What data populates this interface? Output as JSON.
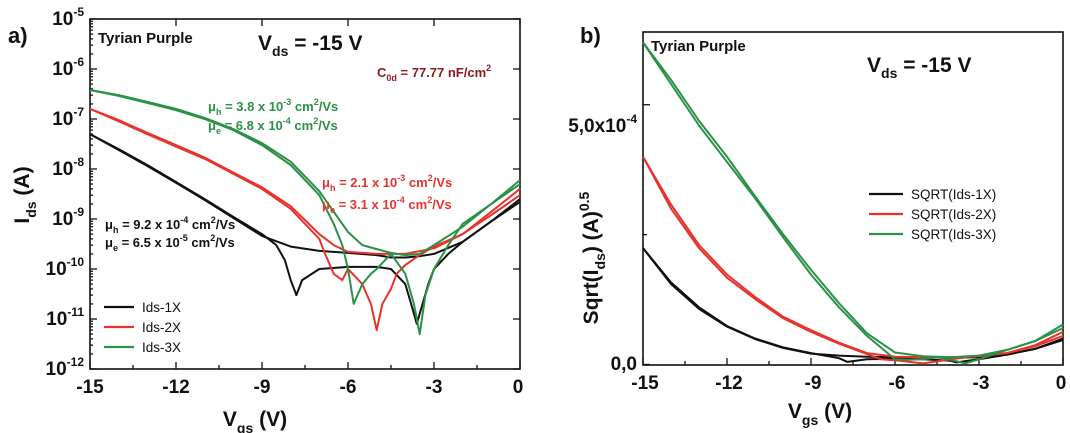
{
  "colors": {
    "black": "#111111",
    "red": "#e8332d",
    "green": "#2a9146",
    "maroon": "#8b1a1a"
  },
  "panel_a": {
    "letter": "a)",
    "title": "Tyrian Purple",
    "vds": {
      "main": "V",
      "sub": "ds",
      "value": " = -15 V"
    },
    "capacitance": {
      "main": "C",
      "sub": "0d",
      "value": " = 77.77 nF/cm",
      "sup": "2"
    },
    "ylabel": {
      "main": "I",
      "sub": "ds",
      "unit": " (A)"
    },
    "xlabel": {
      "main": "V",
      "sub": "gs",
      "unit": " (V)"
    },
    "annotations": {
      "green_h": {
        "mu": "μ",
        "sub": "h",
        "value": " = 3.8 x 10",
        "exp": "-3",
        "unit": " cm",
        "unit_sup": "2",
        "tail": "/Vs"
      },
      "green_e": {
        "mu": "μ",
        "sub": "e",
        "value": " = 6.8 x 10",
        "exp": "-4",
        "unit": " cm",
        "unit_sup": "2",
        "tail": "/Vs"
      },
      "red_h": {
        "mu": "μ",
        "sub": "h",
        "value": " = 2.1 x 10",
        "exp": "-3",
        "unit": " cm",
        "unit_sup": "2",
        "tail": "/Vs"
      },
      "red_e": {
        "mu": "μ",
        "sub": "e",
        "value": " = 3.1 x 10",
        "exp": "-4",
        "unit": " cm",
        "unit_sup": "2",
        "tail": "/Vs"
      },
      "black_h": {
        "mu": "μ",
        "sub": "h",
        "value": " = 9.2 x 10",
        "exp": "-4",
        "unit": " cm",
        "unit_sup": "2",
        "tail": "/Vs"
      },
      "black_e": {
        "mu": "μ",
        "sub": "e",
        "value": " = 6.5 x 10",
        "exp": "-5",
        "unit": " cm",
        "unit_sup": "2",
        "tail": "/Vs"
      }
    },
    "legend": [
      "Ids-1X",
      "Ids-2X",
      "Ids-3X"
    ],
    "x_ticks": [
      "-15",
      "-12",
      "-9",
      "-6",
      "-3",
      "0"
    ],
    "y_ticks": [
      {
        "base": "10",
        "exp": "-5"
      },
      {
        "base": "10",
        "exp": "-6"
      },
      {
        "base": "10",
        "exp": "-7"
      },
      {
        "base": "10",
        "exp": "-8"
      },
      {
        "base": "10",
        "exp": "-9"
      },
      {
        "base": "10",
        "exp": "-10"
      },
      {
        "base": "10",
        "exp": "-11"
      },
      {
        "base": "10",
        "exp": "-12"
      }
    ]
  },
  "panel_b": {
    "letter": "b)",
    "title": "Tyrian Purple",
    "vds": {
      "main": "V",
      "sub": "ds",
      "value": " = -15 V"
    },
    "ylabel": {
      "pre": "Sqrt(I",
      "sub": "ds",
      "mid": ") (A)",
      "sup": "0.5"
    },
    "xlabel": {
      "main": "V",
      "sub": "gs",
      "unit": " (V)"
    },
    "legend": [
      "SQRT(Ids-1X)",
      "SQRT(Ids-2X)",
      "SQRT(Ids-3X)"
    ],
    "x_ticks": [
      "-15",
      "-12",
      "-9",
      "-6",
      "-3",
      "0"
    ],
    "y_ticks": [
      "5,0x10",
      "0,0"
    ],
    "y_tick_exp": "-4"
  },
  "chart_data": [
    {
      "type": "line",
      "xlabel": "Vgs (V)",
      "ylabel": "Ids (A)",
      "yscale": "log",
      "xlim": [
        -15,
        0
      ],
      "ylim": [
        1e-12,
        1e-05
      ],
      "series": [
        {
          "name": "Ids-1X",
          "color": "#111111",
          "branches": [
            {
              "x": [
                -15,
                -14,
                -13,
                -12,
                -11,
                -10,
                -9,
                -8.5,
                -8.2,
                -8,
                -7.8,
                -7.6,
                -7,
                -6,
                -5,
                -4.5,
                -4,
                -3.8,
                -3.6,
                -3.2,
                -3,
                -2.5,
                -2,
                -1,
                0
              ],
              "y": [
                5e-08,
                2.5e-08,
                1.2e-08,
                5.5e-09,
                2.5e-09,
                1.1e-09,
                5e-10,
                3e-10,
                1.5e-10,
                6e-11,
                3e-11,
                6e-11,
                1e-10,
                1.1e-10,
                1.1e-10,
                1e-10,
                5e-11,
                2e-11,
                8e-12,
                5e-11,
                1e-10,
                2e-10,
                3.5e-10,
                9e-10,
                2.2e-09
              ]
            },
            {
              "x": [
                -15,
                -14,
                -13,
                -12,
                -11,
                -10,
                -9,
                -8,
                -7,
                -6,
                -5,
                -4.5,
                -4,
                -3.5,
                -3,
                -2,
                -1,
                0
              ],
              "y": [
                5e-08,
                2.4e-08,
                1.15e-08,
                5.3e-09,
                2.4e-09,
                1.05e-09,
                4.6e-10,
                2.8e-10,
                2.3e-10,
                2.1e-10,
                1.9e-10,
                1.7e-10,
                1.7e-10,
                1.8e-10,
                2e-10,
                3.5e-10,
                9e-10,
                2.5e-09
              ]
            }
          ]
        },
        {
          "name": "Ids-2X",
          "color": "#e8332d",
          "branches": [
            {
              "x": [
                -15,
                -14,
                -13,
                -12,
                -11,
                -10,
                -9,
                -8,
                -7,
                -6.8,
                -6.5,
                -6.2,
                -6,
                -5.5,
                -5.2,
                -5,
                -4.8,
                -4.5,
                -4.3,
                -4,
                -3.5,
                -3,
                -2,
                -1,
                0
              ],
              "y": [
                1.6e-07,
                9e-08,
                5e-08,
                2.8e-08,
                1.6e-08,
                8e-09,
                4e-09,
                1.6e-09,
                4e-10,
                2e-10,
                8e-11,
                6e-11,
                1e-10,
                5e-11,
                2e-11,
                6e-12,
                2e-11,
                4e-11,
                8e-11,
                1.2e-10,
                1.9e-10,
                2.8e-10,
                5e-10,
                1.2e-09,
                3e-09
              ]
            },
            {
              "x": [
                -15,
                -14,
                -13,
                -12,
                -11,
                -10,
                -9,
                -8,
                -7,
                -6.5,
                -6,
                -5,
                -4,
                -3,
                -2,
                -1,
                0
              ],
              "y": [
                1.6e-07,
                9.5e-08,
                5.3e-08,
                3e-08,
                1.7e-08,
                8.5e-09,
                4.3e-09,
                1.8e-09,
                5e-10,
                3e-10,
                2.2e-10,
                2e-10,
                2e-10,
                2.6e-10,
                5e-10,
                1.4e-09,
                4e-09
              ]
            }
          ]
        },
        {
          "name": "Ids-3X",
          "color": "#2a9146",
          "branches": [
            {
              "x": [
                -15,
                -14,
                -13,
                -12,
                -11,
                -10,
                -9,
                -8,
                -7,
                -6.5,
                -6.2,
                -6,
                -5.8,
                -5.5,
                -5.2,
                -5,
                -4.5,
                -4,
                -3.7,
                -3.5,
                -3.3,
                -3,
                -2.5,
                -2,
                -1,
                0
              ],
              "y": [
                3.8e-07,
                2.9e-07,
                2.1e-07,
                1.5e-07,
                1e-07,
                6e-08,
                3e-08,
                1.2e-08,
                3e-09,
                8e-10,
                3e-10,
                1e-10,
                2e-11,
                5e-11,
                8e-11,
                1e-10,
                2e-10,
                8e-11,
                2e-11,
                5e-12,
                3e-11,
                1e-10,
                3e-10,
                8e-10,
                2e-09,
                5e-09
              ]
            },
            {
              "x": [
                -15,
                -14,
                -13,
                -12,
                -11,
                -10,
                -9,
                -8,
                -7,
                -6.5,
                -6,
                -5.5,
                -5,
                -4.5,
                -4,
                -3.5,
                -3,
                -2,
                -1,
                0
              ],
              "y": [
                3.8e-07,
                3e-07,
                2.2e-07,
                1.6e-07,
                1.05e-07,
                6.3e-08,
                3.3e-08,
                1.4e-08,
                3.6e-09,
                1.4e-09,
                5.5e-10,
                3e-10,
                2.5e-10,
                2.1e-10,
                1.9e-10,
                2e-10,
                3e-10,
                7e-10,
                2e-09,
                6e-09
              ]
            }
          ]
        }
      ],
      "legend_position": "bottom-left"
    },
    {
      "type": "line",
      "xlabel": "Vgs (V)",
      "ylabel": "Sqrt(Ids) (A)^0.5",
      "xlim": [
        -15,
        0
      ],
      "ylim": [
        -1e-06,
        0.00064
      ],
      "series": [
        {
          "name": "SQRT(Ids-1X)",
          "color": "#111111",
          "branches": [
            {
              "x": [
                -15,
                -14,
                -13,
                -12,
                -11,
                -10,
                -9,
                -8,
                -7.7,
                -7,
                -6,
                -5,
                -4,
                -3.8,
                -3,
                -2,
                -1,
                0
              ],
              "y": [
                0.000224,
                0.000158,
                0.00011,
                7.4e-05,
                5e-05,
                3.3e-05,
                2.2e-05,
                1.2e-05,
                5e-06,
                1e-05,
                1.1e-05,
                1e-05,
                7e-06,
                4e-06,
                1e-05,
                1.9e-05,
                3e-05,
                4.7e-05
              ]
            },
            {
              "x": [
                -15,
                -14,
                -13,
                -12,
                -11,
                -10,
                -9,
                -8,
                -7,
                -6,
                -5,
                -4,
                -3,
                -2,
                -1,
                0
              ],
              "y": [
                0.000224,
                0.000155,
                0.000107,
                7.3e-05,
                4.9e-05,
                3.2e-05,
                2.1e-05,
                1.7e-05,
                1.5e-05,
                1.4e-05,
                1.4e-05,
                1.3e-05,
                1.4e-05,
                1.9e-05,
                3e-05,
                5e-05
              ]
            }
          ]
        },
        {
          "name": "SQRT(Ids-2X)",
          "color": "#e8332d",
          "branches": [
            {
              "x": [
                -15,
                -14,
                -13,
                -12,
                -11,
                -10,
                -9,
                -8,
                -7,
                -6.5,
                -6,
                -5,
                -4.5,
                -4,
                -3,
                -2,
                -1,
                0
              ],
              "y": [
                0.0004,
                0.0003,
                0.000224,
                0.000167,
                0.000126,
                8.9e-05,
                6.3e-05,
                4e-05,
                2e-05,
                1e-05,
                8e-06,
                2e-06,
                6e-06,
                1e-05,
                1.7e-05,
                2.2e-05,
                3.5e-05,
                5.5e-05
              ]
            },
            {
              "x": [
                -15,
                -14,
                -13,
                -12,
                -11,
                -10,
                -9,
                -8,
                -7,
                -6,
                -5,
                -4,
                -3,
                -2,
                -1,
                0
              ],
              "y": [
                0.0004,
                0.000308,
                0.00023,
                0.000173,
                0.00013,
                9.2e-05,
                6.6e-05,
                4.2e-05,
                2.2e-05,
                1.5e-05,
                1.4e-05,
                1.4e-05,
                1.6e-05,
                2.2e-05,
                3.7e-05,
                6.3e-05
              ]
            }
          ]
        },
        {
          "name": "SQRT(Ids-3X)",
          "color": "#2a9146",
          "branches": [
            {
              "x": [
                -15,
                -14,
                -13,
                -12,
                -11,
                -10,
                -9,
                -8,
                -7,
                -6,
                -5.5,
                -5,
                -4.5,
                -4,
                -3.5,
                -3,
                -2,
                -1,
                0
              ],
              "y": [
                0.00062,
                0.00054,
                0.00046,
                0.00039,
                0.00032,
                0.000245,
                0.000173,
                0.00011,
                5.5e-05,
                1e-05,
                9e-06,
                1e-05,
                1.4e-05,
                9e-06,
                2e-06,
                1e-05,
                2.8e-05,
                4.5e-05,
                7e-05
              ]
            },
            {
              "x": [
                -15,
                -14,
                -13,
                -12,
                -11,
                -10,
                -9,
                -8,
                -7,
                -6,
                -5,
                -4,
                -3,
                -2,
                -1,
                0
              ],
              "y": [
                0.00062,
                0.000548,
                0.000469,
                0.0004,
                0.000324,
                0.000251,
                0.000182,
                0.000118,
                6e-05,
                2.3e-05,
                1.6e-05,
                1.4e-05,
                1.7e-05,
                2.8e-05,
                4.5e-05,
                7.7e-05
              ]
            }
          ]
        }
      ],
      "legend_position": "middle-right"
    }
  ]
}
